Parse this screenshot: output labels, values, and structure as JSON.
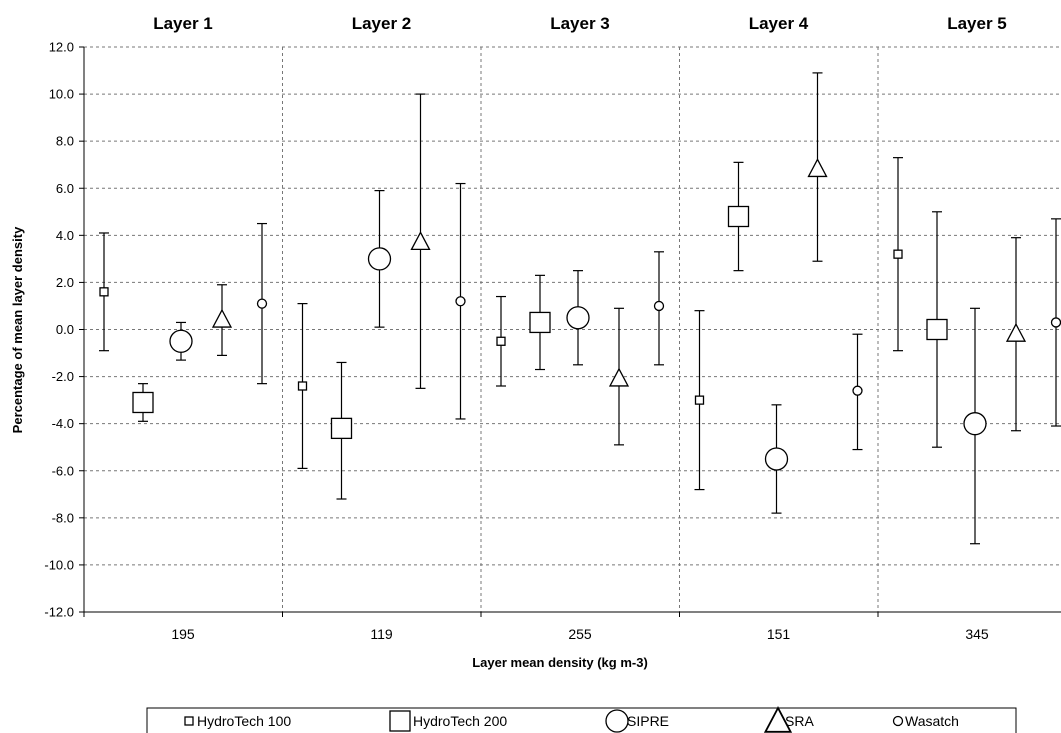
{
  "chart_data": {
    "type": "scatter",
    "title": "",
    "xlabel": "Layer mean density (kg m-3)",
    "ylabel": "Percentage of mean layer density",
    "ylim": [
      -12,
      12
    ],
    "yticks": [
      "12.0",
      "10.0",
      "8.0",
      "6.0",
      "4.0",
      "2.0",
      "0.0",
      "-2.0",
      "-4.0",
      "-6.0",
      "-8.0",
      "-10.0",
      "-12.0"
    ],
    "grid": true,
    "legend_position": "bottom",
    "layers": [
      "Layer 1",
      "Layer 2",
      "Layer 3",
      "Layer 4",
      "Layer 5"
    ],
    "categories": [
      "195",
      "119",
      "255",
      "151",
      "345"
    ],
    "series": [
      {
        "name": "HydroTech 100",
        "marker": "small-square",
        "values": [
          1.6,
          -2.4,
          -0.5,
          -3.0,
          3.2
        ],
        "error_low": [
          -0.9,
          -5.9,
          -2.4,
          -6.8,
          -0.9
        ],
        "error_high": [
          4.1,
          1.1,
          1.4,
          0.8,
          7.3
        ]
      },
      {
        "name": "HydroTech 200",
        "marker": "large-square",
        "values": [
          -3.1,
          -4.2,
          0.3,
          4.8,
          0.0
        ],
        "error_low": [
          -3.9,
          -7.2,
          -1.7,
          2.5,
          -5.0
        ],
        "error_high": [
          -2.3,
          -1.4,
          2.3,
          7.1,
          5.0
        ]
      },
      {
        "name": "SIPRE",
        "marker": "large-circle",
        "values": [
          -0.5,
          3.0,
          0.5,
          -5.5,
          -4.0
        ],
        "error_low": [
          -1.3,
          0.1,
          -1.5,
          -7.8,
          -9.1
        ],
        "error_high": [
          0.3,
          5.9,
          2.5,
          -3.2,
          0.9
        ]
      },
      {
        "name": "SRA",
        "marker": "triangle",
        "values": [
          0.4,
          3.7,
          -2.1,
          6.8,
          -0.2
        ],
        "error_low": [
          -1.1,
          -2.5,
          -4.9,
          2.9,
          -4.3
        ],
        "error_high": [
          1.9,
          10.0,
          0.9,
          10.9,
          3.9
        ]
      },
      {
        "name": "Wasatch",
        "marker": "small-circle",
        "values": [
          1.1,
          1.2,
          1.0,
          -2.6,
          0.3
        ],
        "error_low": [
          -2.3,
          -3.8,
          -1.5,
          -5.1,
          -4.1
        ],
        "error_high": [
          4.5,
          6.2,
          3.3,
          -0.2,
          4.7
        ]
      }
    ]
  },
  "legend": {
    "items": [
      {
        "icon": "small-square-icon",
        "label": "HydroTech 100"
      },
      {
        "icon": "large-square-icon",
        "label": "HydroTech 200"
      },
      {
        "icon": "large-circle-icon",
        "label": "SIPRE"
      },
      {
        "icon": "triangle-icon",
        "label": "SRA"
      },
      {
        "icon": "small-circle-icon",
        "label": "Wasatch"
      }
    ]
  },
  "colors": {
    "ink": "#000000",
    "grid": "#777777",
    "background": "#ffffff"
  }
}
